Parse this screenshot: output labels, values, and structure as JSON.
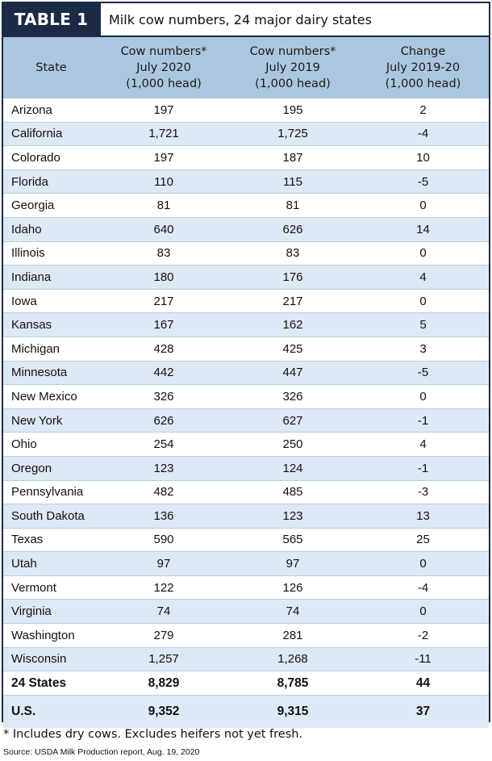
{
  "header": {
    "tag": "TABLE 1",
    "title": "Milk cow numbers, 24 major dairy states"
  },
  "chart_data": {
    "type": "table",
    "columns": [
      "State",
      "Cow numbers*\nJuly 2020\n(1,000 head)",
      "Cow numbers*\nJuly 2019\n(1,000 head)",
      "Change\nJuly 2019-20\n(1,000 head)"
    ],
    "rows": [
      [
        "Arizona",
        "197",
        "195",
        "2"
      ],
      [
        "California",
        "1,721",
        "1,725",
        "-4"
      ],
      [
        "Colorado",
        "197",
        "187",
        "10"
      ],
      [
        "Florida",
        "110",
        "115",
        "-5"
      ],
      [
        "Georgia",
        "81",
        "81",
        "0"
      ],
      [
        "Idaho",
        "640",
        "626",
        "14"
      ],
      [
        "Illinois",
        "83",
        "83",
        "0"
      ],
      [
        "Indiana",
        "180",
        "176",
        "4"
      ],
      [
        "Iowa",
        "217",
        "217",
        "0"
      ],
      [
        "Kansas",
        "167",
        "162",
        "5"
      ],
      [
        "Michigan",
        "428",
        "425",
        "3"
      ],
      [
        "Minnesota",
        "442",
        "447",
        "-5"
      ],
      [
        "New Mexico",
        "326",
        "326",
        "0"
      ],
      [
        "New York",
        "626",
        "627",
        "-1"
      ],
      [
        "Ohio",
        "254",
        "250",
        "4"
      ],
      [
        "Oregon",
        "123",
        "124",
        "-1"
      ],
      [
        "Pennsylvania",
        "482",
        "485",
        "-3"
      ],
      [
        "South Dakota",
        "136",
        "123",
        "13"
      ],
      [
        "Texas",
        "590",
        "565",
        "25"
      ],
      [
        "Utah",
        "97",
        "97",
        "0"
      ],
      [
        "Vermont",
        "122",
        "126",
        "-4"
      ],
      [
        "Virginia",
        "74",
        "74",
        "0"
      ],
      [
        "Washington",
        "279",
        "281",
        "-2"
      ],
      [
        "Wisconsin",
        "1,257",
        "1,268",
        "-11"
      ]
    ],
    "totals": [
      [
        "24 States",
        "8,829",
        "8,785",
        "44"
      ],
      [
        "U.S.",
        "9,352",
        "9,315",
        "37"
      ]
    ]
  },
  "footnote": "* Includes dry cows. Excludes heifers not yet fresh.",
  "source": "Source: USDA Milk Production report, Aug. 19, 2020",
  "colors": {
    "navy": "#1b2b46",
    "header_blue": "#abc7df",
    "stripe_blue": "#dde9f4"
  }
}
